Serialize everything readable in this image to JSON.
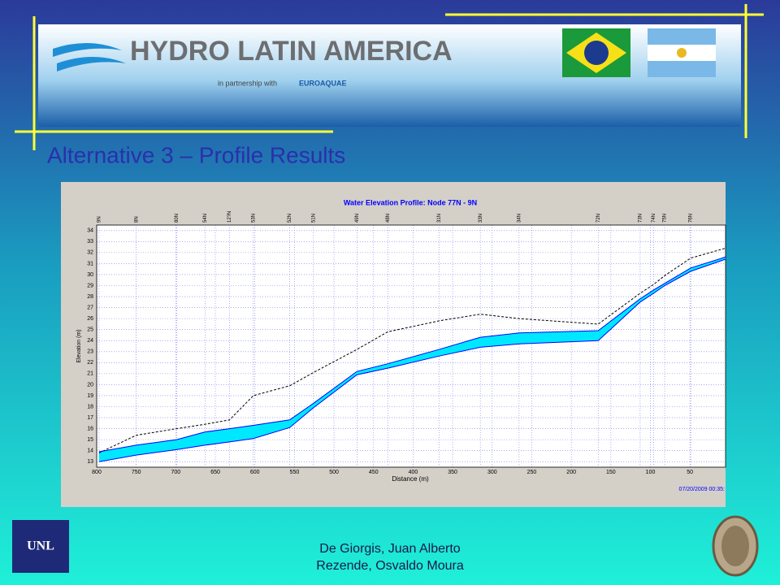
{
  "header": {
    "logo_text": "HYDRO LATIN AMERICA",
    "partnership": "in partnership with",
    "partner": "EUROAQUAE"
  },
  "slide_title": "Alternative 3 – Profile Results",
  "footer": {
    "logo": "UNL",
    "authors": [
      "De Giorgis, Juan Alberto",
      "Rezende, Osvaldo Moura"
    ]
  },
  "chart_data": {
    "type": "line",
    "title": "Water Elevation Profile:  Node 77N - 9N",
    "xlabel": "Distance (m)",
    "ylabel": "Elevation (m)",
    "timestamp": "07/20/2009 00:35:",
    "x": [
      797,
      750,
      699,
      663,
      632,
      602,
      556,
      526,
      471,
      432,
      367,
      315,
      266,
      166,
      113,
      96,
      82,
      49,
      5
    ],
    "node_labels": [
      "9N",
      "8N",
      "80N",
      "54N",
      "12?N",
      "53N",
      "52N",
      "51N",
      "49N",
      "48N",
      "31N",
      "33N",
      "34N",
      "72N",
      "73N",
      "74N",
      "75N",
      "76N",
      null
    ],
    "series": [
      {
        "color": "#000000",
        "dashed": true,
        "values": [
          13.8,
          15.4,
          16.0,
          16.4,
          16.8,
          19.0,
          19.9,
          21.1,
          23.2,
          24.8,
          25.8,
          26.4,
          26.0,
          25.5,
          28.3,
          29.1,
          29.9,
          31.5,
          32.4
        ]
      },
      {
        "color": "#0000ff",
        "values": [
          13.9,
          14.5,
          15.0,
          15.7,
          16.0,
          16.3,
          16.8,
          18.3,
          21.2,
          21.9,
          23.2,
          24.3,
          24.7,
          24.9,
          27.8,
          28.6,
          29.2,
          30.6,
          31.6
        ]
      },
      {
        "color": "#0000ff",
        "values": [
          13.0,
          13.6,
          14.1,
          14.5,
          14.8,
          15.1,
          16.1,
          17.9,
          20.9,
          21.5,
          22.6,
          23.4,
          23.7,
          24.0,
          27.5,
          28.3,
          29.0,
          30.3,
          31.4
        ]
      }
    ],
    "fill_color": "#00e8ff",
    "xlim": [
      800,
      5
    ],
    "xticks": [
      800,
      750,
      700,
      650,
      600,
      550,
      500,
      450,
      400,
      350,
      300,
      250,
      200,
      150,
      100,
      50
    ],
    "ylim": [
      12.5,
      34.5
    ],
    "yticks": [
      13,
      14,
      15,
      16,
      17,
      18,
      19,
      20,
      21,
      22,
      23,
      24,
      25,
      26,
      27,
      28,
      29,
      30,
      31,
      32,
      33,
      34
    ],
    "grid": true
  }
}
